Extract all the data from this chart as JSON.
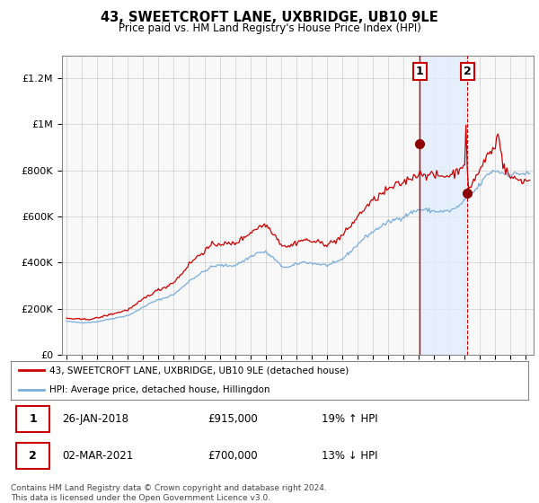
{
  "title": "43, SWEETCROFT LANE, UXBRIDGE, UB10 9LE",
  "subtitle": "Price paid vs. HM Land Registry's House Price Index (HPI)",
  "ylabel_ticks": [
    "£0",
    "£200K",
    "£400K",
    "£600K",
    "£800K",
    "£1M",
    "£1.2M"
  ],
  "ytick_values": [
    0,
    200000,
    400000,
    600000,
    800000,
    1000000,
    1200000
  ],
  "ylim": [
    0,
    1300000
  ],
  "xlim_start": 1994.7,
  "xlim_end": 2025.5,
  "legend_line1": "43, SWEETCROFT LANE, UXBRIDGE, UB10 9LE (detached house)",
  "legend_line2": "HPI: Average price, detached house, Hillingdon",
  "event1_label": "1",
  "event1_date": "26-JAN-2018",
  "event1_price": "£915,000",
  "event1_pct": "19% ↑ HPI",
  "event1_x": 2018.07,
  "event2_label": "2",
  "event2_date": "02-MAR-2021",
  "event2_price": "£700,000",
  "event2_pct": "13% ↓ HPI",
  "event2_x": 2021.17,
  "sale_color": "#cc0000",
  "hpi_color": "#7aaddb",
  "vline_color": "#cc0000",
  "shade_color": "#ddeeff",
  "footer": "Contains HM Land Registry data © Crown copyright and database right 2024.\nThis data is licensed under the Open Government Licence v3.0.",
  "background_color": "#f0f0f0"
}
